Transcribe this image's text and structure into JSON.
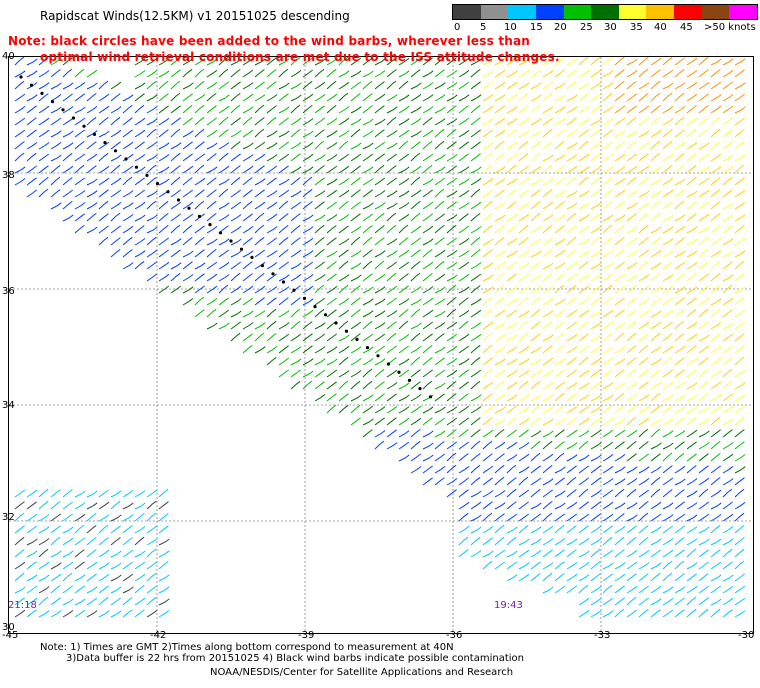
{
  "title": "Rapidscat Winds(12.5KM) v1 20151025 descending",
  "note": {
    "line1": "Note: black circles have been added to the wind barbs, wherever less than",
    "line2": "optimal wind retrieval conditions are met due to the ISS attitude changes."
  },
  "legend": {
    "labels": [
      "0",
      "5",
      "10",
      "15",
      "20",
      "25",
      "30",
      "35",
      "40",
      "45",
      ">50 knots"
    ],
    "colors": [
      "#404040",
      "#909090",
      "#00c8ff",
      "#0040ff",
      "#00c000",
      "#007000",
      "#ffff30",
      "#ffc000",
      "#ff0000",
      "#8b4513",
      "#ff00ff"
    ]
  },
  "axes": {
    "lat_labels": [
      "40",
      "38",
      "36",
      "34",
      "32",
      "30"
    ],
    "lon_labels": [
      "-45",
      "-42",
      "-39",
      "-36",
      "-33",
      "-30"
    ]
  },
  "times": {
    "left": "21:18",
    "right": "19:43"
  },
  "footer": {
    "line1": "Note: 1) Times are GMT 2)Times along bottom correspond to measurement at 40N",
    "line2": "3)Data buffer is 22 hrs from 20151025 4) Black wind barbs indicate possible contamination",
    "line3": "NOAA/NESDIS/Center for Satellite Applications and Research"
  }
}
